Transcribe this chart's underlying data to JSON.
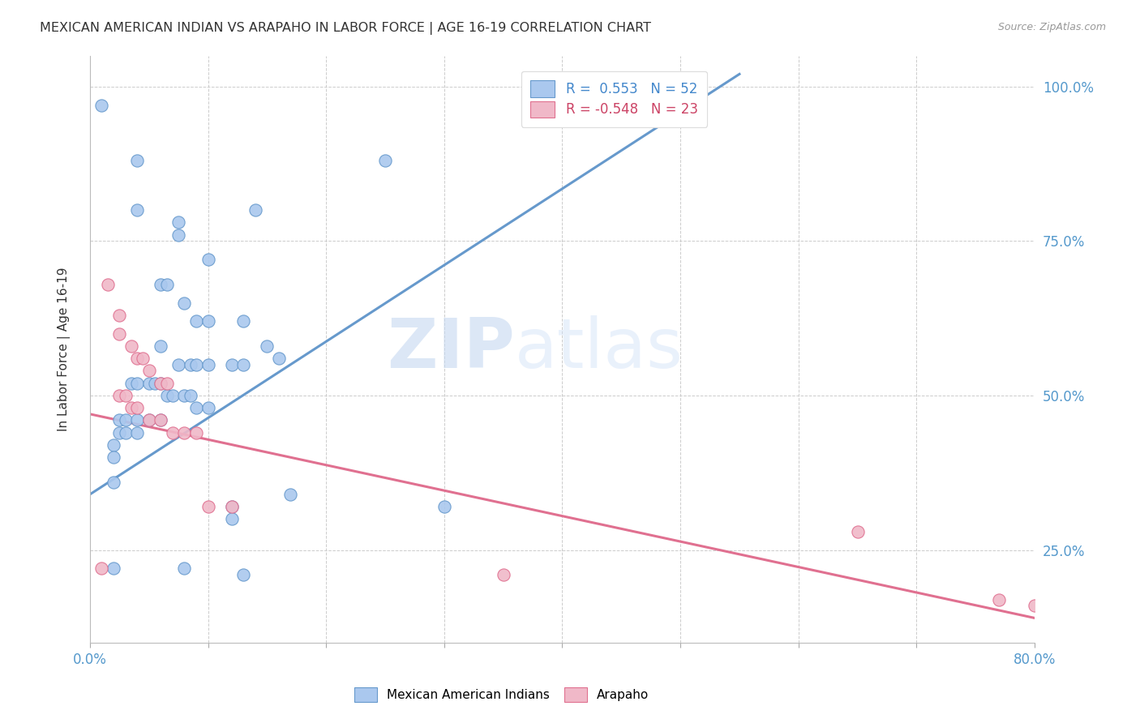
{
  "title": "MEXICAN AMERICAN INDIAN VS ARAPAHO IN LABOR FORCE | AGE 16-19 CORRELATION CHART",
  "source": "Source: ZipAtlas.com",
  "ylabel": "In Labor Force | Age 16-19",
  "yticks": [
    0.25,
    0.5,
    0.75,
    1.0
  ],
  "ytick_labels": [
    "25.0%",
    "50.0%",
    "75.0%",
    "100.0%"
  ],
  "xticks": [
    0.0,
    0.1,
    0.2,
    0.3,
    0.4,
    0.5,
    0.6,
    0.7,
    0.8
  ],
  "watermark_zip": "ZIP",
  "watermark_atlas": "atlas",
  "blue_color": "#aac8ee",
  "pink_color": "#f0b8c8",
  "blue_edge_color": "#6699cc",
  "pink_edge_color": "#e07090",
  "blue_scatter": [
    [
      0.01,
      0.97
    ],
    [
      0.04,
      0.88
    ],
    [
      0.1,
      0.72
    ],
    [
      0.25,
      0.88
    ],
    [
      0.04,
      0.8
    ],
    [
      0.075,
      0.78
    ],
    [
      0.075,
      0.76
    ],
    [
      0.14,
      0.8
    ],
    [
      0.06,
      0.68
    ],
    [
      0.065,
      0.68
    ],
    [
      0.08,
      0.65
    ],
    [
      0.09,
      0.62
    ],
    [
      0.1,
      0.62
    ],
    [
      0.13,
      0.62
    ],
    [
      0.15,
      0.58
    ],
    [
      0.16,
      0.56
    ],
    [
      0.06,
      0.58
    ],
    [
      0.075,
      0.55
    ],
    [
      0.085,
      0.55
    ],
    [
      0.09,
      0.55
    ],
    [
      0.1,
      0.55
    ],
    [
      0.12,
      0.55
    ],
    [
      0.13,
      0.55
    ],
    [
      0.035,
      0.52
    ],
    [
      0.04,
      0.52
    ],
    [
      0.05,
      0.52
    ],
    [
      0.055,
      0.52
    ],
    [
      0.06,
      0.52
    ],
    [
      0.065,
      0.5
    ],
    [
      0.07,
      0.5
    ],
    [
      0.08,
      0.5
    ],
    [
      0.085,
      0.5
    ],
    [
      0.09,
      0.48
    ],
    [
      0.1,
      0.48
    ],
    [
      0.025,
      0.46
    ],
    [
      0.03,
      0.46
    ],
    [
      0.04,
      0.46
    ],
    [
      0.05,
      0.46
    ],
    [
      0.06,
      0.46
    ],
    [
      0.025,
      0.44
    ],
    [
      0.03,
      0.44
    ],
    [
      0.04,
      0.44
    ],
    [
      0.02,
      0.42
    ],
    [
      0.02,
      0.4
    ],
    [
      0.02,
      0.36
    ],
    [
      0.12,
      0.32
    ],
    [
      0.17,
      0.34
    ],
    [
      0.3,
      0.32
    ],
    [
      0.12,
      0.3
    ],
    [
      0.02,
      0.22
    ],
    [
      0.08,
      0.22
    ],
    [
      0.13,
      0.21
    ]
  ],
  "pink_scatter": [
    [
      0.015,
      0.68
    ],
    [
      0.025,
      0.63
    ],
    [
      0.025,
      0.6
    ],
    [
      0.035,
      0.58
    ],
    [
      0.04,
      0.56
    ],
    [
      0.045,
      0.56
    ],
    [
      0.05,
      0.54
    ],
    [
      0.06,
      0.52
    ],
    [
      0.065,
      0.52
    ],
    [
      0.025,
      0.5
    ],
    [
      0.03,
      0.5
    ],
    [
      0.035,
      0.48
    ],
    [
      0.04,
      0.48
    ],
    [
      0.05,
      0.46
    ],
    [
      0.06,
      0.46
    ],
    [
      0.07,
      0.44
    ],
    [
      0.08,
      0.44
    ],
    [
      0.09,
      0.44
    ],
    [
      0.1,
      0.32
    ],
    [
      0.12,
      0.32
    ],
    [
      0.01,
      0.22
    ],
    [
      0.35,
      0.21
    ],
    [
      0.65,
      0.28
    ],
    [
      0.77,
      0.17
    ],
    [
      0.8,
      0.16
    ]
  ],
  "blue_trendline_x": [
    0.0,
    0.55
  ],
  "blue_trendline_y": [
    0.34,
    1.02
  ],
  "pink_trendline_x": [
    0.0,
    0.8
  ],
  "pink_trendline_y": [
    0.47,
    0.14
  ],
  "ylim": [
    0.1,
    1.05
  ],
  "xlim": [
    0.0,
    0.8
  ]
}
